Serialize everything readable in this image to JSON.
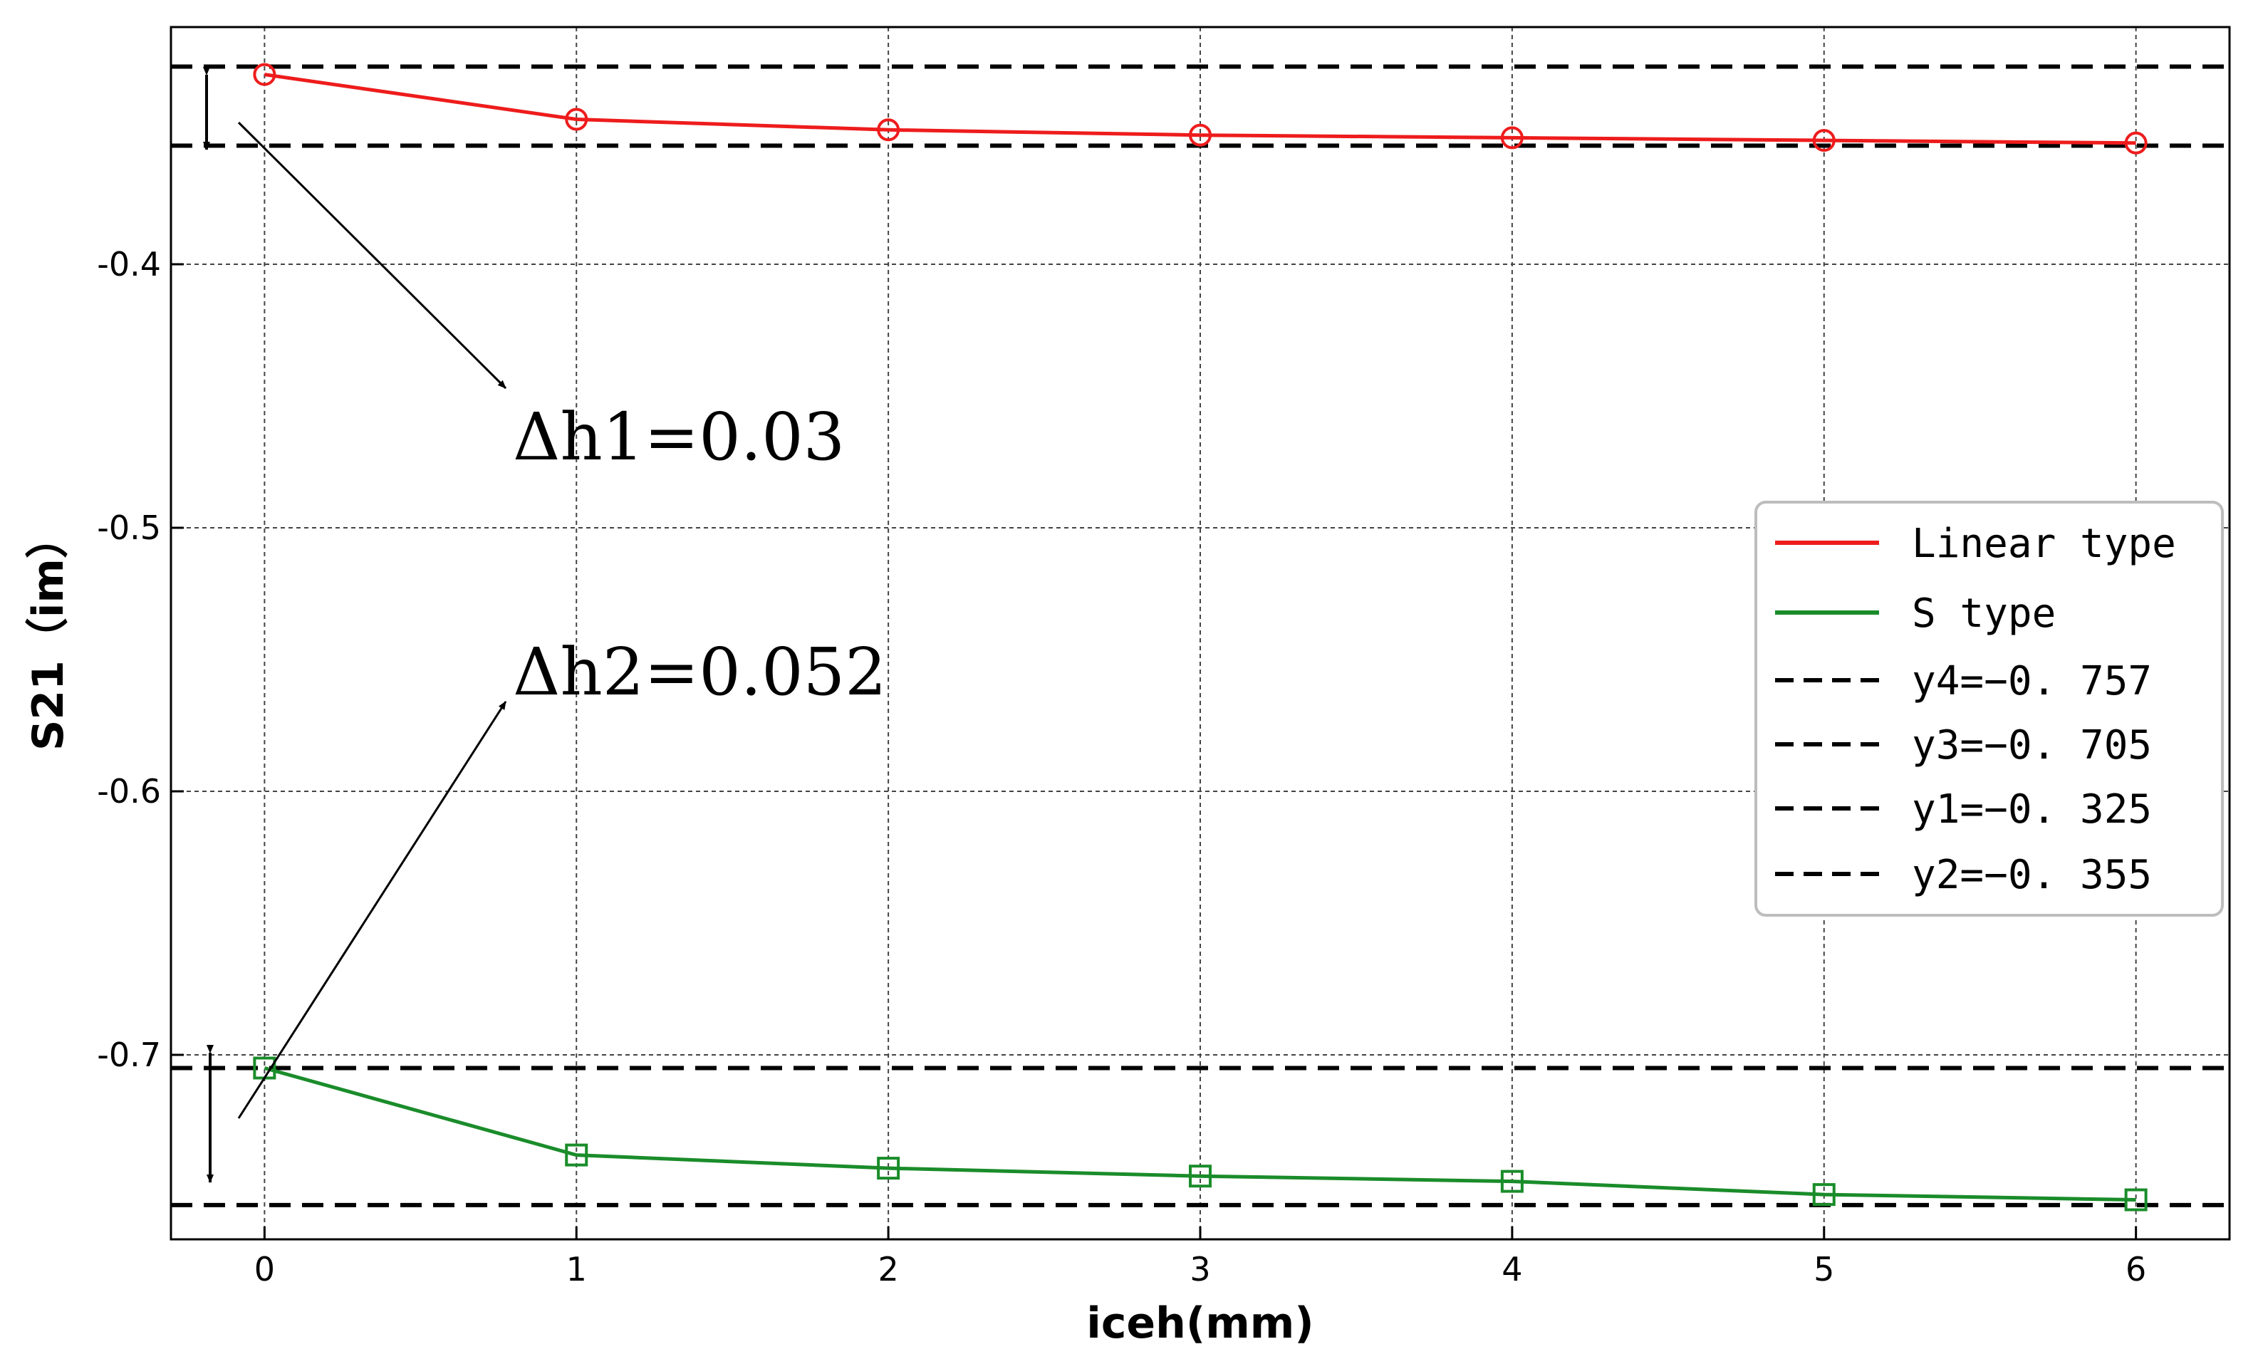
{
  "chart_data": {
    "type": "line",
    "xlabel": "iceh(mm)",
    "ylabel": "S21（im）",
    "x": [
      0,
      1,
      2,
      3,
      4,
      5,
      6
    ],
    "xlim": [
      -0.3,
      6.3
    ],
    "ylim": [
      -0.77,
      -0.31
    ],
    "xticks": [
      "0",
      "1",
      "2",
      "3",
      "4",
      "5",
      "6"
    ],
    "yticks": [
      {
        "value": -0.4,
        "label": "-0.4"
      },
      {
        "value": -0.5,
        "label": "-0.5"
      },
      {
        "value": -0.6,
        "label": "-0.6"
      },
      {
        "value": -0.7,
        "label": "-0.7"
      }
    ],
    "grid": true,
    "legend_position": "center-right",
    "series": [
      {
        "name": "Linear type",
        "color": "#ee1c1c",
        "marker": "circle",
        "values": [
          -0.328,
          -0.345,
          -0.349,
          -0.351,
          -0.352,
          -0.353,
          -0.354
        ]
      },
      {
        "name": "S type",
        "color": "#1a8c2a",
        "marker": "square",
        "values": [
          -0.705,
          -0.738,
          -0.743,
          -0.746,
          -0.748,
          -0.753,
          -0.755
        ]
      }
    ],
    "reference_lines": [
      {
        "name": "y4=−0. 757",
        "y": -0.757,
        "color": "#000000",
        "style": "dashed"
      },
      {
        "name": "y3=−0. 705",
        "y": -0.705,
        "color": "#000000",
        "style": "dashed"
      },
      {
        "name": "y1=−0. 325",
        "y": -0.325,
        "color": "#000000",
        "style": "dashed"
      },
      {
        "name": "y2=−0. 355",
        "y": -0.355,
        "color": "#000000",
        "style": "dashed"
      }
    ],
    "annotations": [
      {
        "text": "Δh1=0.03"
      },
      {
        "text": "Δh2=0.052"
      }
    ]
  }
}
